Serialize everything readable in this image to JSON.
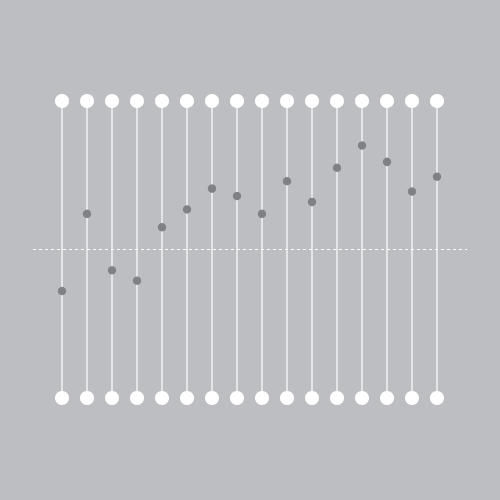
{
  "colors": {
    "background": "#bdbec1",
    "track": "#ffffff",
    "knob": "#ffffff",
    "point": "#808184",
    "baseline": "#ffffff"
  },
  "chart_data": {
    "type": "scatter",
    "title": "",
    "xlabel": "",
    "ylabel": "",
    "series": [
      {
        "values": [
          -0.28,
          0.24,
          -0.14,
          -0.21,
          0.15,
          0.27,
          0.41,
          0.36,
          0.24,
          0.46,
          0.32,
          0.55,
          0.7,
          0.59,
          0.39,
          0.49
        ]
      }
    ],
    "ylim": [
      -1,
      1
    ],
    "baseline": 0,
    "grid": false,
    "legend": "none"
  }
}
